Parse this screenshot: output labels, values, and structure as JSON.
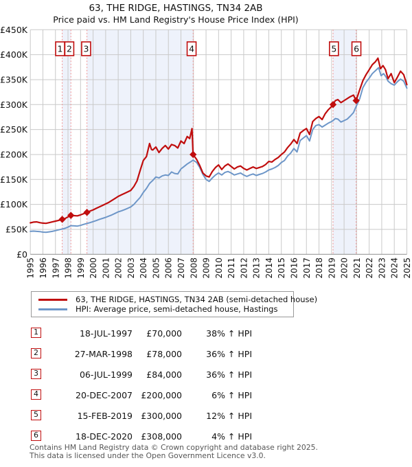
{
  "chart_data": {
    "type": "line",
    "title": "63, THE RIDGE, HASTINGS, TN34 2AB",
    "subtitle": "Price paid vs. HM Land Registry's House Price Index (HPI)",
    "legend_position": "bottom",
    "grid": true,
    "colors": {
      "property": "#c00d0d",
      "hpi": "#6d96c8",
      "grid": "#c9c9c9",
      "axis": "#999999",
      "band": "#eef2fb",
      "dashed": "#ef8f8f",
      "marker_border": "#c00d0d",
      "text": "#111111"
    },
    "x_axis": {
      "start": 1995,
      "end": 2025,
      "tick_step": 1
    },
    "y_axis": {
      "unit": "GBP_thousands",
      "min": 0,
      "max": 450,
      "step": 50,
      "ticks": [
        {
          "v": 450,
          "label": "£450K"
        },
        {
          "v": 400,
          "label": "£400K"
        },
        {
          "v": 350,
          "label": "£350K"
        },
        {
          "v": 300,
          "label": "£300K"
        },
        {
          "v": 250,
          "label": "£250K"
        },
        {
          "v": 200,
          "label": "£200K"
        },
        {
          "v": 150,
          "label": "£150K"
        },
        {
          "v": 100,
          "label": "£100K"
        },
        {
          "v": 50,
          "label": "£50K"
        },
        {
          "v": 0,
          "label": "£0"
        }
      ]
    },
    "shaded_periods": [
      [
        1997.54,
        1998.23
      ],
      [
        1999.51,
        2007.97
      ],
      [
        2019.12,
        2020.96
      ]
    ],
    "legend": [
      {
        "label": "63, THE RIDGE, HASTINGS, TN34 2AB (semi-detached house)",
        "color": "#c00d0d"
      },
      {
        "label": "HPI: Average price, semi-detached house, Hastings",
        "color": "#6d96c8"
      }
    ],
    "sales": [
      {
        "num": "1",
        "year": 1997.54,
        "price_k": 70,
        "box_dx": -3.1
      },
      {
        "num": "2",
        "year": 1998.23,
        "price_k": 78,
        "box_dx": -2.3
      },
      {
        "num": "3",
        "year": 1999.51,
        "price_k": 84,
        "box_dx": -1.2
      },
      {
        "num": "4",
        "year": 2007.97,
        "price_k": 200,
        "box_dx": -2.2
      },
      {
        "num": "5",
        "year": 2019.12,
        "price_k": 300,
        "box_dx": 1.3
      },
      {
        "num": "6",
        "year": 2020.96,
        "price_k": 308,
        "box_dx": 0.4
      }
    ],
    "series": [
      {
        "id": "hpi-line",
        "name": "HPI: Average price, semi-detached house, Hastings",
        "color": "#6d96c8",
        "width": 2,
        "points": [
          [
            1995.0,
            46
          ],
          [
            1995.25,
            46.5
          ],
          [
            1995.5,
            46
          ],
          [
            1995.75,
            45.5
          ],
          [
            1996.0,
            44.5
          ],
          [
            1996.25,
            44
          ],
          [
            1996.5,
            45
          ],
          [
            1996.75,
            46
          ],
          [
            1997.0,
            47.5
          ],
          [
            1997.25,
            49
          ],
          [
            1997.54,
            50.7
          ],
          [
            1997.75,
            52
          ],
          [
            1998.0,
            54.5
          ],
          [
            1998.23,
            57.4
          ],
          [
            1998.5,
            57
          ],
          [
            1998.75,
            56.5
          ],
          [
            1999.0,
            58
          ],
          [
            1999.25,
            60
          ],
          [
            1999.51,
            61.8
          ],
          [
            1999.75,
            63.5
          ],
          [
            2000.0,
            65.5
          ],
          [
            2000.25,
            67.5
          ],
          [
            2000.5,
            70
          ],
          [
            2000.75,
            72
          ],
          [
            2001.0,
            74
          ],
          [
            2001.25,
            76.5
          ],
          [
            2001.5,
            79
          ],
          [
            2001.75,
            82
          ],
          [
            2002.0,
            85
          ],
          [
            2002.25,
            87
          ],
          [
            2002.5,
            89.5
          ],
          [
            2002.75,
            92
          ],
          [
            2003.0,
            95
          ],
          [
            2003.25,
            100
          ],
          [
            2003.5,
            107
          ],
          [
            2003.75,
            114
          ],
          [
            2004.0,
            124
          ],
          [
            2004.25,
            132
          ],
          [
            2004.5,
            142
          ],
          [
            2004.75,
            148
          ],
          [
            2005.0,
            155
          ],
          [
            2005.25,
            153
          ],
          [
            2005.5,
            157
          ],
          [
            2005.75,
            159
          ],
          [
            2006.0,
            158
          ],
          [
            2006.25,
            165
          ],
          [
            2006.5,
            162
          ],
          [
            2006.75,
            161
          ],
          [
            2007.0,
            171
          ],
          [
            2007.25,
            176
          ],
          [
            2007.5,
            181
          ],
          [
            2007.75,
            185
          ],
          [
            2007.97,
            188.7
          ],
          [
            2008.25,
            184
          ],
          [
            2008.5,
            174
          ],
          [
            2008.75,
            160
          ],
          [
            2009.0,
            150
          ],
          [
            2009.25,
            146
          ],
          [
            2009.5,
            153
          ],
          [
            2009.75,
            159
          ],
          [
            2010.0,
            163
          ],
          [
            2010.25,
            159
          ],
          [
            2010.5,
            164
          ],
          [
            2010.75,
            166
          ],
          [
            2011.0,
            163
          ],
          [
            2011.25,
            159
          ],
          [
            2011.5,
            161
          ],
          [
            2011.75,
            163
          ],
          [
            2012.0,
            159
          ],
          [
            2012.25,
            156
          ],
          [
            2012.5,
            159
          ],
          [
            2012.75,
            161
          ],
          [
            2013.0,
            158
          ],
          [
            2013.25,
            160
          ],
          [
            2013.5,
            162
          ],
          [
            2013.75,
            165
          ],
          [
            2014.0,
            169
          ],
          [
            2014.25,
            171
          ],
          [
            2014.5,
            174
          ],
          [
            2014.75,
            178
          ],
          [
            2015.0,
            184
          ],
          [
            2015.25,
            188
          ],
          [
            2015.5,
            197
          ],
          [
            2015.75,
            203
          ],
          [
            2016.0,
            212
          ],
          [
            2016.25,
            205
          ],
          [
            2016.5,
            228
          ],
          [
            2016.75,
            233
          ],
          [
            2017.0,
            238
          ],
          [
            2017.25,
            227
          ],
          [
            2017.5,
            250
          ],
          [
            2017.75,
            258
          ],
          [
            2018.0,
            260
          ],
          [
            2018.25,
            255
          ],
          [
            2018.5,
            259
          ],
          [
            2018.75,
            263
          ],
          [
            2019.0,
            266
          ],
          [
            2019.12,
            268
          ],
          [
            2019.3,
            272
          ],
          [
            2019.5,
            271
          ],
          [
            2019.75,
            265
          ],
          [
            2020.0,
            268
          ],
          [
            2020.25,
            271
          ],
          [
            2020.5,
            277
          ],
          [
            2020.75,
            284
          ],
          [
            2020.96,
            296
          ],
          [
            2021.25,
            312
          ],
          [
            2021.5,
            334
          ],
          [
            2021.75,
            345
          ],
          [
            2022.0,
            353
          ],
          [
            2022.25,
            362
          ],
          [
            2022.5,
            368
          ],
          [
            2022.75,
            374
          ],
          [
            2022.95,
            358
          ],
          [
            2023.15,
            362
          ],
          [
            2023.35,
            355
          ],
          [
            2023.5,
            347
          ],
          [
            2023.75,
            342
          ],
          [
            2024.0,
            339
          ],
          [
            2024.25,
            346
          ],
          [
            2024.5,
            351
          ],
          [
            2024.75,
            347
          ],
          [
            2025.0,
            333
          ]
        ]
      },
      {
        "id": "property-price-line",
        "name": "63, THE RIDGE, HASTINGS, TN34 2AB (semi-detached house)",
        "color": "#c00d0d",
        "width": 2.2,
        "points": [
          [
            1995.0,
            63
          ],
          [
            1995.25,
            64.5
          ],
          [
            1995.5,
            65
          ],
          [
            1995.75,
            63.5
          ],
          [
            1996.0,
            62.5
          ],
          [
            1996.25,
            62
          ],
          [
            1996.5,
            63.5
          ],
          [
            1996.75,
            65
          ],
          [
            1997.0,
            66.5
          ],
          [
            1997.25,
            68
          ],
          [
            1997.54,
            70
          ],
          [
            1997.75,
            71.5
          ],
          [
            1998.0,
            75
          ],
          [
            1998.23,
            78
          ],
          [
            1998.5,
            77.5
          ],
          [
            1998.75,
            77
          ],
          [
            1999.0,
            79
          ],
          [
            1999.25,
            81.5
          ],
          [
            1999.51,
            84
          ],
          [
            1999.75,
            86.5
          ],
          [
            2000.0,
            89
          ],
          [
            2000.25,
            92
          ],
          [
            2000.5,
            95
          ],
          [
            2000.75,
            98
          ],
          [
            2001.0,
            101
          ],
          [
            2001.25,
            104
          ],
          [
            2001.5,
            108
          ],
          [
            2001.75,
            112
          ],
          [
            2002.0,
            116
          ],
          [
            2002.25,
            119
          ],
          [
            2002.5,
            122
          ],
          [
            2002.75,
            125
          ],
          [
            2003.0,
            128
          ],
          [
            2003.25,
            136
          ],
          [
            2003.5,
            147
          ],
          [
            2003.75,
            168
          ],
          [
            2004.0,
            188
          ],
          [
            2004.25,
            196
          ],
          [
            2004.5,
            222
          ],
          [
            2004.65,
            210
          ],
          [
            2004.75,
            209
          ],
          [
            2005.0,
            215
          ],
          [
            2005.25,
            204
          ],
          [
            2005.5,
            212
          ],
          [
            2005.75,
            218
          ],
          [
            2006.0,
            211
          ],
          [
            2006.25,
            220
          ],
          [
            2006.5,
            218
          ],
          [
            2006.75,
            213
          ],
          [
            2007.0,
            227
          ],
          [
            2007.25,
            222
          ],
          [
            2007.5,
            236
          ],
          [
            2007.7,
            232
          ],
          [
            2007.88,
            252
          ],
          [
            2007.97,
            200
          ],
          [
            2008.25,
            190
          ],
          [
            2008.5,
            178
          ],
          [
            2008.75,
            163
          ],
          [
            2009.0,
            157
          ],
          [
            2009.25,
            155
          ],
          [
            2009.5,
            166
          ],
          [
            2009.75,
            174
          ],
          [
            2010.0,
            179
          ],
          [
            2010.25,
            170
          ],
          [
            2010.5,
            177
          ],
          [
            2010.75,
            181
          ],
          [
            2011.0,
            176
          ],
          [
            2011.25,
            171
          ],
          [
            2011.5,
            175
          ],
          [
            2011.75,
            177
          ],
          [
            2012.0,
            172
          ],
          [
            2012.25,
            169
          ],
          [
            2012.5,
            172
          ],
          [
            2012.75,
            175
          ],
          [
            2013.0,
            172
          ],
          [
            2013.25,
            174
          ],
          [
            2013.5,
            176
          ],
          [
            2013.75,
            180
          ],
          [
            2014.0,
            186
          ],
          [
            2014.25,
            185
          ],
          [
            2014.5,
            190
          ],
          [
            2014.75,
            194
          ],
          [
            2015.0,
            200
          ],
          [
            2015.25,
            205
          ],
          [
            2015.5,
            214
          ],
          [
            2015.75,
            221
          ],
          [
            2016.0,
            230
          ],
          [
            2016.25,
            222
          ],
          [
            2016.5,
            243
          ],
          [
            2016.75,
            248
          ],
          [
            2017.0,
            252
          ],
          [
            2017.25,
            240
          ],
          [
            2017.5,
            266
          ],
          [
            2017.75,
            272
          ],
          [
            2018.0,
            276
          ],
          [
            2018.25,
            270
          ],
          [
            2018.5,
            282
          ],
          [
            2018.75,
            290
          ],
          [
            2019.0,
            296
          ],
          [
            2019.12,
            300
          ],
          [
            2019.3,
            308
          ],
          [
            2019.5,
            310
          ],
          [
            2019.75,
            304
          ],
          [
            2020.0,
            308
          ],
          [
            2020.25,
            312
          ],
          [
            2020.5,
            316
          ],
          [
            2020.75,
            319
          ],
          [
            2020.96,
            308
          ],
          [
            2021.25,
            330
          ],
          [
            2021.5,
            348
          ],
          [
            2021.75,
            360
          ],
          [
            2022.0,
            370
          ],
          [
            2022.25,
            380
          ],
          [
            2022.5,
            386
          ],
          [
            2022.7,
            393
          ],
          [
            2022.9,
            372
          ],
          [
            2023.1,
            378
          ],
          [
            2023.3,
            370
          ],
          [
            2023.5,
            352
          ],
          [
            2023.75,
            362
          ],
          [
            2024.0,
            344
          ],
          [
            2024.25,
            355
          ],
          [
            2024.5,
            367
          ],
          [
            2024.75,
            360
          ],
          [
            2025.0,
            340
          ]
        ]
      }
    ]
  },
  "sales_table": {
    "rows": [
      {
        "num": "1",
        "date": "18-JUL-1997",
        "price": "£70,000",
        "hpi": "38% ↑ HPI"
      },
      {
        "num": "2",
        "date": "27-MAR-1998",
        "price": "£78,000",
        "hpi": "36% ↑ HPI"
      },
      {
        "num": "3",
        "date": "06-JUL-1999",
        "price": "£84,000",
        "hpi": "36% ↑ HPI"
      },
      {
        "num": "4",
        "date": "20-DEC-2007",
        "price": "£200,000",
        "hpi": "6% ↑ HPI"
      },
      {
        "num": "5",
        "date": "15-FEB-2019",
        "price": "£300,000",
        "hpi": "12% ↑ HPI"
      },
      {
        "num": "6",
        "date": "18-DEC-2020",
        "price": "£308,000",
        "hpi": "4% ↑ HPI"
      }
    ]
  },
  "footer": {
    "line1": "Contains HM Land Registry data © Crown copyright and database right 2025.",
    "line2": "This data is licensed under the Open Government Licence v3.0."
  }
}
